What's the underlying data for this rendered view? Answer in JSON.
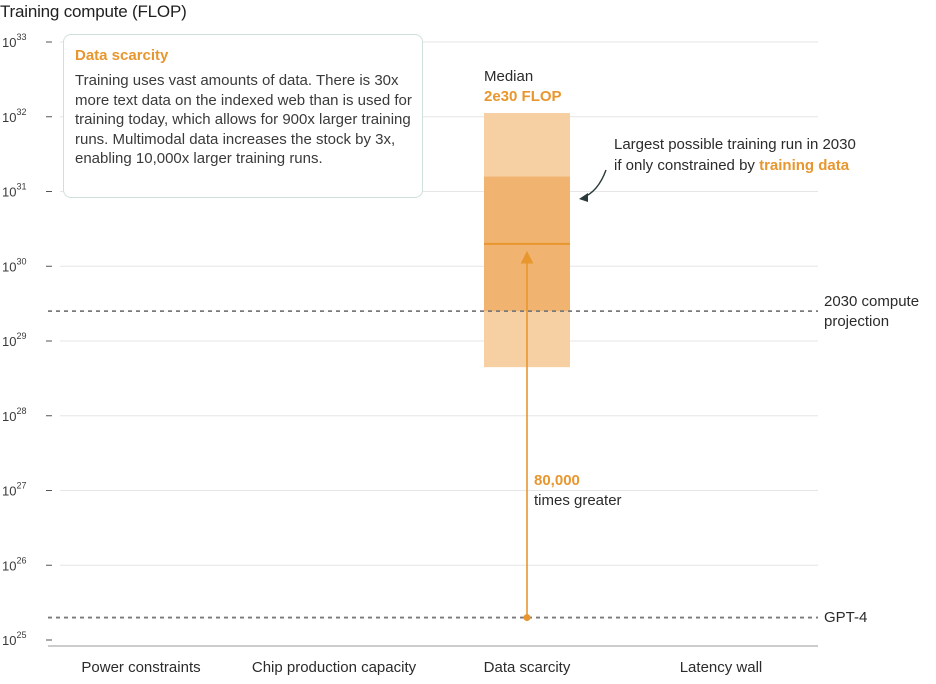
{
  "chart_data": {
    "type": "range-bar",
    "title": "Training compute (FLOP)",
    "ylabel": "Training compute (FLOP)",
    "yscale": "log10",
    "ylim_exp": [
      25,
      33
    ],
    "y_ticks": [
      {
        "base": "10",
        "exp": "33",
        "value_exp": 33
      },
      {
        "base": "10",
        "exp": "32",
        "value_exp": 32
      },
      {
        "base": "10",
        "exp": "31",
        "value_exp": 31
      },
      {
        "base": "10",
        "exp": "30",
        "value_exp": 30
      },
      {
        "base": "10",
        "exp": "29",
        "value_exp": 29
      },
      {
        "base": "10",
        "exp": "28",
        "value_exp": 28
      },
      {
        "base": "10",
        "exp": "27",
        "value_exp": 27
      },
      {
        "base": "10",
        "exp": "26",
        "value_exp": 26
      },
      {
        "base": "10",
        "exp": "25",
        "value_exp": 25
      }
    ],
    "categories": [
      "Power constraints",
      "Chip production capacity",
      "Data scarcity",
      "Latency wall"
    ],
    "ranges": [
      {
        "category": "Data scarcity",
        "outer_exp": [
          28.65,
          32.05
        ],
        "inner_exp": [
          29.4,
          31.2
        ],
        "median_exp": 30.3
      }
    ],
    "reference_lines": [
      {
        "label": "2030 compute projection",
        "value_exp": 29.4
      },
      {
        "label": "GPT-4",
        "value_exp": 25.3
      }
    ],
    "arrow": {
      "category": "Data scarcity",
      "from_exp": 25.3,
      "to_exp": 30.2
    }
  },
  "chart_title": "Training compute (FLOP)",
  "callout": {
    "title": "Data scarcity",
    "body": "Training uses vast amounts of data. There is 30x more text data on the indexed web than is used for training today, which allows for 900x larger training runs. Multimodal data increases the stock by 3x, enabling 10,000x larger training runs."
  },
  "median": {
    "label": "Median",
    "value": "2e30 FLOP"
  },
  "annotation": {
    "line1": "Largest possible training run in 2030",
    "line2_prefix": "if only constrained by ",
    "line2_highlight": "training data"
  },
  "multiplier": {
    "value": "80,000",
    "text": "times greater"
  },
  "ref_labels": {
    "projection_line1": "2030 compute",
    "projection_line2": "projection",
    "gpt4": "GPT-4"
  },
  "colors": {
    "accent": "#e8962e",
    "outer_range": "#f6cfa3",
    "inner_range": "#efb06a",
    "grid": "#e6e6e6",
    "dashed": "#7a7a7a"
  }
}
